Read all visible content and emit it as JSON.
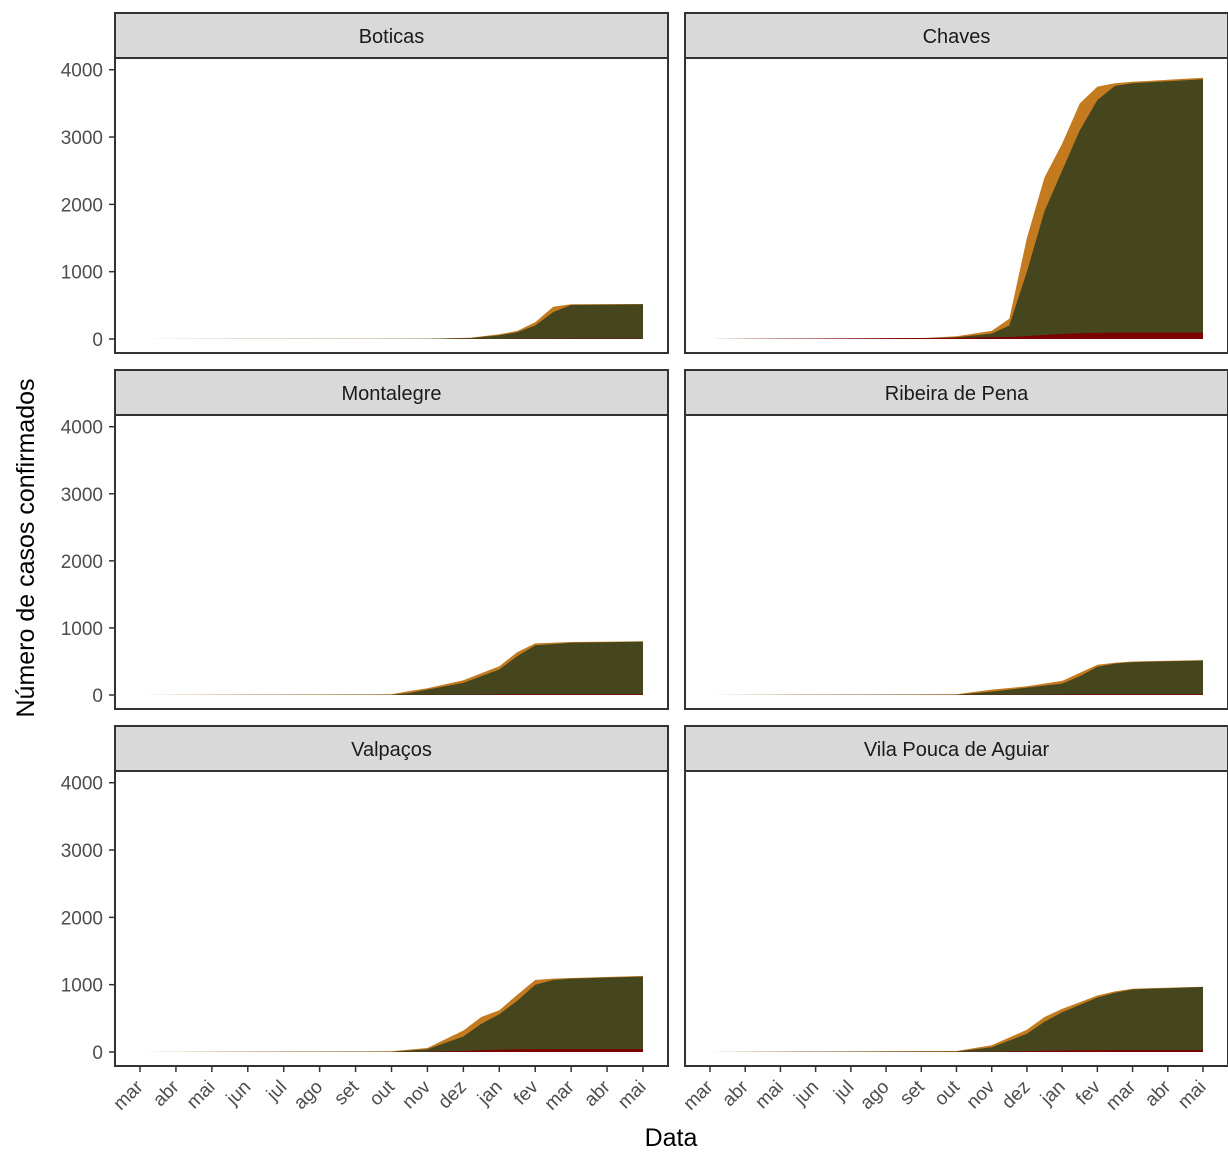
{
  "chart_data": {
    "type": "area",
    "stacked": true,
    "facet_layout": {
      "rows": 3,
      "cols": 2
    },
    "xlabel": "Data",
    "ylabel": "Número de casos confirmados",
    "ylim": [
      0,
      4100
    ],
    "yticks": [
      0,
      1000,
      2000,
      3000,
      4000
    ],
    "xticks": [
      "mar",
      "abr",
      "mai",
      "jun",
      "jul",
      "ago",
      "set",
      "out",
      "nov",
      "dez",
      "jan",
      "fev",
      "mar",
      "abr",
      "mai"
    ],
    "grid": false,
    "legend": "none",
    "colors": {
      "active": "#C47A1E",
      "recovered": "#46461E",
      "deaths": "#7B0000"
    },
    "panels": [
      {
        "name": "Boticas",
        "x_month": [
          0,
          8,
          9.2,
          10,
          10.5,
          11,
          11.5,
          12,
          14
        ],
        "total": [
          0,
          5,
          20,
          70,
          120,
          250,
          480,
          515,
          520
        ],
        "recovered": [
          0,
          3,
          15,
          55,
          100,
          200,
          400,
          505,
          515
        ],
        "deaths": [
          0,
          0,
          1,
          2,
          3,
          4,
          5,
          6,
          6
        ]
      },
      {
        "name": "Chaves",
        "x_month": [
          0,
          6,
          7,
          8,
          8.5,
          9,
          9.5,
          10,
          10.5,
          11,
          11.5,
          12,
          13,
          14
        ],
        "total": [
          0,
          10,
          40,
          120,
          300,
          1500,
          2400,
          2900,
          3500,
          3750,
          3800,
          3820,
          3850,
          3880
        ],
        "recovered": [
          0,
          5,
          25,
          80,
          200,
          1000,
          1900,
          2500,
          3100,
          3550,
          3760,
          3800,
          3830,
          3860
        ],
        "deaths": [
          0,
          15,
          20,
          25,
          30,
          45,
          60,
          75,
          85,
          90,
          95,
          95,
          95,
          95
        ]
      },
      {
        "name": "Montalegre",
        "x_month": [
          0,
          7,
          7.5,
          8,
          9,
          10,
          10.5,
          11,
          12,
          14
        ],
        "total": [
          0,
          10,
          60,
          100,
          220,
          430,
          640,
          770,
          790,
          800
        ],
        "recovered": [
          0,
          5,
          30,
          80,
          180,
          380,
          580,
          740,
          780,
          795
        ],
        "deaths": [
          0,
          1,
          2,
          3,
          5,
          8,
          10,
          12,
          12,
          12
        ]
      },
      {
        "name": "Ribeira de Pena",
        "x_month": [
          0,
          7,
          8,
          9,
          10,
          10.5,
          11,
          11.5,
          12,
          14
        ],
        "total": [
          0,
          10,
          80,
          130,
          210,
          330,
          450,
          480,
          500,
          520
        ],
        "recovered": [
          0,
          5,
          50,
          110,
          170,
          280,
          420,
          470,
          490,
          515
        ],
        "deaths": [
          0,
          1,
          3,
          5,
          7,
          9,
          10,
          11,
          11,
          11
        ]
      },
      {
        "name": "Valpaços",
        "x_month": [
          0,
          7,
          8,
          9,
          9.5,
          10,
          10.5,
          11,
          11.5,
          12,
          14
        ],
        "total": [
          0,
          10,
          60,
          320,
          520,
          620,
          850,
          1070,
          1090,
          1100,
          1130
        ],
        "recovered": [
          0,
          5,
          40,
          230,
          420,
          560,
          760,
          1000,
          1070,
          1090,
          1120
        ],
        "deaths": [
          0,
          1,
          5,
          15,
          25,
          35,
          40,
          42,
          43,
          43,
          43
        ]
      },
      {
        "name": "Vila Pouca de Aguiar",
        "x_month": [
          0,
          7,
          8,
          9,
          9.5,
          10,
          10.5,
          11,
          11.5,
          12,
          14
        ],
        "total": [
          0,
          15,
          100,
          330,
          520,
          640,
          740,
          840,
          900,
          940,
          970
        ],
        "recovered": [
          0,
          8,
          70,
          270,
          450,
          590,
          700,
          810,
          880,
          930,
          965
        ],
        "deaths": [
          0,
          2,
          5,
          12,
          18,
          22,
          25,
          27,
          28,
          28,
          28
        ]
      }
    ]
  }
}
